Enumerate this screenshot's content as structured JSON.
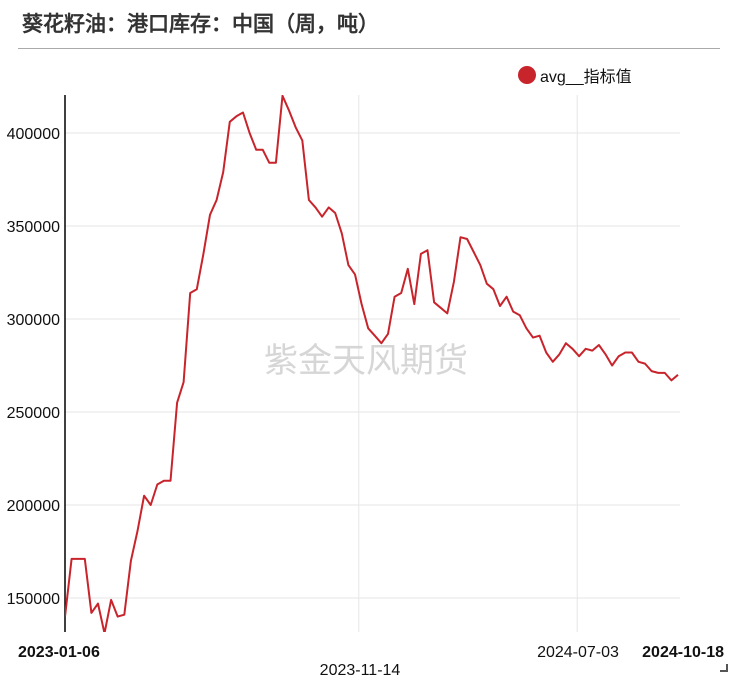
{
  "title": "葵花籽油：港口库存：中国（周，吨）",
  "watermark": "紫金天风期货",
  "colors": {
    "line": "#c8242b",
    "grid": "#e6e6e6",
    "axis": "#000000"
  },
  "chart_data": {
    "type": "line",
    "title": "葵花籽油：港口库存：中国（周，吨）",
    "xlabel": "",
    "ylabel": "",
    "ylim": [
      133000,
      420000
    ],
    "grid": true,
    "legend_position": "top-right",
    "x_tick_labels": [
      "2023-01-06",
      "2023-11-14",
      "2024-07-03",
      "2024-10-18"
    ],
    "y_tick_labels": [
      "150000",
      "200000",
      "250000",
      "300000",
      "350000",
      "400000"
    ],
    "series": [
      {
        "name": "avg__指标值",
        "x": [
          "2023-01-06",
          "2023-01-13",
          "2023-01-20",
          "2023-01-27",
          "2023-02-03",
          "2023-02-10",
          "2023-02-17",
          "2023-02-24",
          "2023-03-03",
          "2023-03-10",
          "2023-03-17",
          "2023-03-24",
          "2023-03-31",
          "2023-04-07",
          "2023-04-14",
          "2023-04-21",
          "2023-04-28",
          "2023-05-05",
          "2023-05-12",
          "2023-05-19",
          "2023-05-26",
          "2023-06-02",
          "2023-06-09",
          "2023-06-16",
          "2023-06-23",
          "2023-06-30",
          "2023-07-07",
          "2023-07-14",
          "2023-07-21",
          "2023-07-28",
          "2023-08-04",
          "2023-08-11",
          "2023-08-18",
          "2023-08-25",
          "2023-09-01",
          "2023-09-08",
          "2023-09-15",
          "2023-09-22",
          "2023-09-29",
          "2023-10-06",
          "2023-10-13",
          "2023-10-20",
          "2023-10-27",
          "2023-11-03",
          "2023-11-10",
          "2023-11-17",
          "2023-11-24",
          "2023-12-01",
          "2023-12-08",
          "2023-12-15",
          "2023-12-22",
          "2023-12-29",
          "2024-01-05",
          "2024-01-12",
          "2024-01-19",
          "2024-01-26",
          "2024-02-02",
          "2024-02-09",
          "2024-02-16",
          "2024-02-23",
          "2024-03-01",
          "2024-03-08",
          "2024-03-15",
          "2024-03-22",
          "2024-03-29",
          "2024-04-05",
          "2024-04-12",
          "2024-04-19",
          "2024-04-26",
          "2024-05-03",
          "2024-05-10",
          "2024-05-17",
          "2024-05-24",
          "2024-05-31",
          "2024-06-07",
          "2024-06-14",
          "2024-06-21",
          "2024-06-28",
          "2024-07-05",
          "2024-07-12",
          "2024-07-19",
          "2024-07-26",
          "2024-08-02",
          "2024-08-09",
          "2024-08-16",
          "2024-08-23",
          "2024-08-30",
          "2024-09-06",
          "2024-09-13",
          "2024-09-20",
          "2024-09-27",
          "2024-10-04",
          "2024-10-11",
          "2024-10-18"
        ],
        "values": [
          140000,
          171000,
          171000,
          171000,
          142000,
          147000,
          131000,
          149000,
          140000,
          141000,
          170000,
          186000,
          205000,
          200000,
          211000,
          213000,
          213000,
          255000,
          266000,
          314000,
          316000,
          335000,
          356000,
          364000,
          379000,
          406000,
          409000,
          411000,
          400000,
          391000,
          391000,
          384000,
          384000,
          420000,
          412000,
          403000,
          396000,
          364000,
          360000,
          355000,
          360000,
          357000,
          346000,
          329000,
          324000,
          308000,
          295000,
          291000,
          287000,
          292000,
          312000,
          314000,
          327000,
          308000,
          335000,
          337000,
          309000,
          306000,
          303000,
          320000,
          344000,
          343000,
          336000,
          329000,
          319000,
          316000,
          307000,
          312000,
          304000,
          302000,
          295000,
          290000,
          291000,
          282000,
          277000,
          281000,
          287000,
          284000,
          280000,
          284000,
          283000,
          286000,
          281000,
          275000,
          280000,
          282000,
          282000,
          277000,
          276000,
          272000,
          271000,
          271000,
          267000,
          270000
        ]
      }
    ]
  }
}
